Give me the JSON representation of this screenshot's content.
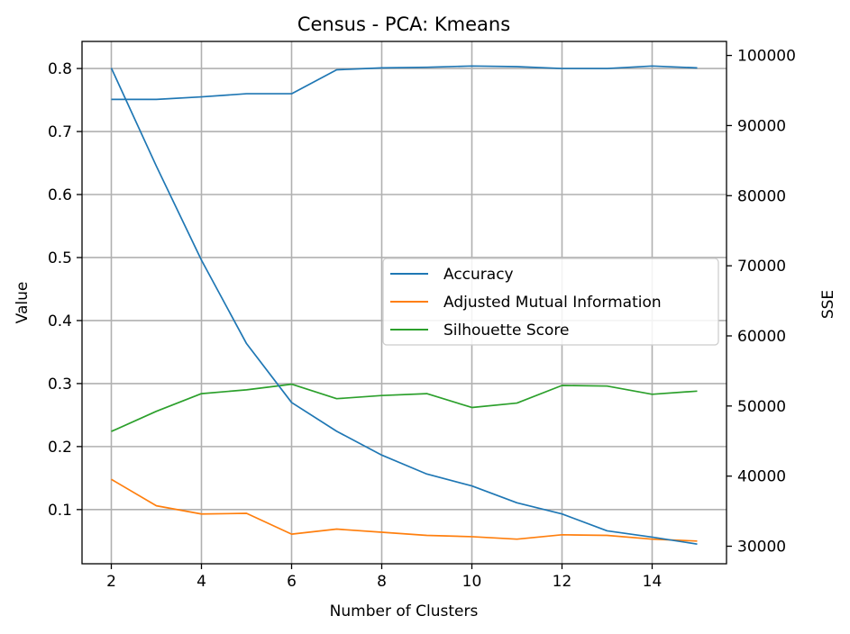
{
  "chart_data": {
    "type": "line",
    "title": "Census - PCA: Kmeans",
    "xlabel": "Number of Clusters",
    "ylabel_left": "Value",
    "ylabel_right": "SSE",
    "x": [
      2,
      3,
      4,
      5,
      6,
      7,
      8,
      9,
      10,
      11,
      12,
      13,
      14,
      15
    ],
    "xlim": [
      1.35,
      15.65
    ],
    "ylim_left": [
      0.014,
      0.843
    ],
    "ylim_right": [
      27500,
      102000
    ],
    "xticks": [
      2,
      4,
      6,
      8,
      10,
      12,
      14
    ],
    "yticks_left": [
      0.1,
      0.2,
      0.3,
      0.4,
      0.5,
      0.6,
      0.7,
      0.8
    ],
    "yticks_right": [
      30000,
      40000,
      50000,
      60000,
      70000,
      80000,
      90000,
      100000
    ],
    "grid": true,
    "legend_position": "center-right",
    "series": [
      {
        "name": "Accuracy",
        "axis": "left",
        "color": "#1f77b4",
        "values": [
          0.751,
          0.751,
          0.755,
          0.76,
          0.76,
          0.798,
          0.801,
          0.802,
          0.804,
          0.803,
          0.8,
          0.8,
          0.804,
          0.801
        ]
      },
      {
        "name": "Adjusted Mutual Information",
        "axis": "left",
        "color": "#ff7f0e",
        "values": [
          0.148,
          0.106,
          0.093,
          0.094,
          0.061,
          0.069,
          0.064,
          0.059,
          0.057,
          0.053,
          0.06,
          0.059,
          0.053,
          0.05
        ]
      },
      {
        "name": "Silhouette Score",
        "axis": "left",
        "color": "#2ca02c",
        "values": [
          0.224,
          0.256,
          0.284,
          0.29,
          0.299,
          0.276,
          0.281,
          0.284,
          0.262,
          0.269,
          0.297,
          0.296,
          0.283,
          0.288
        ]
      },
      {
        "name": "",
        "axis": "right",
        "color": "#1f77b4",
        "values": [
          98200,
          84200,
          70800,
          58900,
          50500,
          46400,
          43000,
          40300,
          38600,
          36200,
          34600,
          32200,
          31300,
          30300
        ]
      }
    ]
  }
}
